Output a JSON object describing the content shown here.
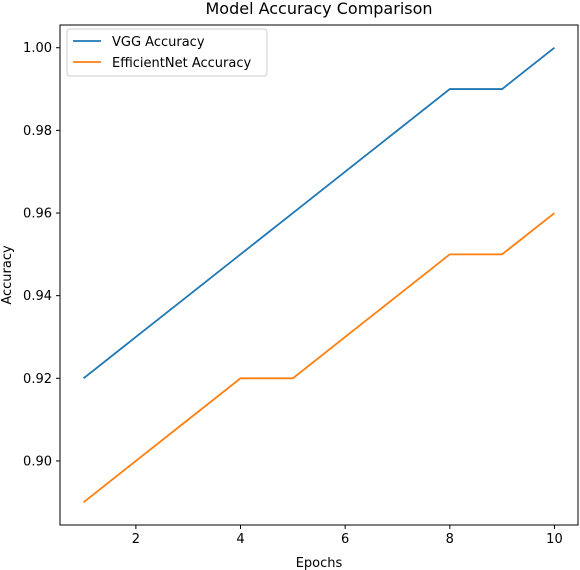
{
  "chart_data": {
    "type": "line",
    "title": "Model Accuracy Comparison",
    "xlabel": "Epochs",
    "ylabel": "Accuracy",
    "x": [
      1,
      2,
      3,
      4,
      5,
      6,
      7,
      8,
      9,
      10
    ],
    "series": [
      {
        "name": "VGG Accuracy",
        "color": "#1f77b4",
        "values": [
          0.92,
          0.93,
          0.94,
          0.95,
          0.96,
          0.97,
          0.98,
          0.99,
          0.99,
          1.0
        ]
      },
      {
        "name": "EfficientNet Accuracy",
        "color": "#ff7f0e",
        "values": [
          0.89,
          0.9,
          0.91,
          0.92,
          0.92,
          0.93,
          0.94,
          0.95,
          0.95,
          0.96
        ]
      }
    ],
    "xticks": [
      2,
      4,
      6,
      8,
      10
    ],
    "xtick_labels": [
      "2",
      "4",
      "6",
      "8",
      "10"
    ],
    "yticks": [
      0.9,
      0.92,
      0.94,
      0.96,
      0.98,
      1.0
    ],
    "ytick_labels": [
      "0.90",
      "0.92",
      "0.94",
      "0.96",
      "0.98",
      "1.00"
    ],
    "xlim": [
      0.55,
      10.45
    ],
    "ylim": [
      0.8845,
      1.0055
    ],
    "grid": false,
    "legend_position": "upper-left"
  }
}
